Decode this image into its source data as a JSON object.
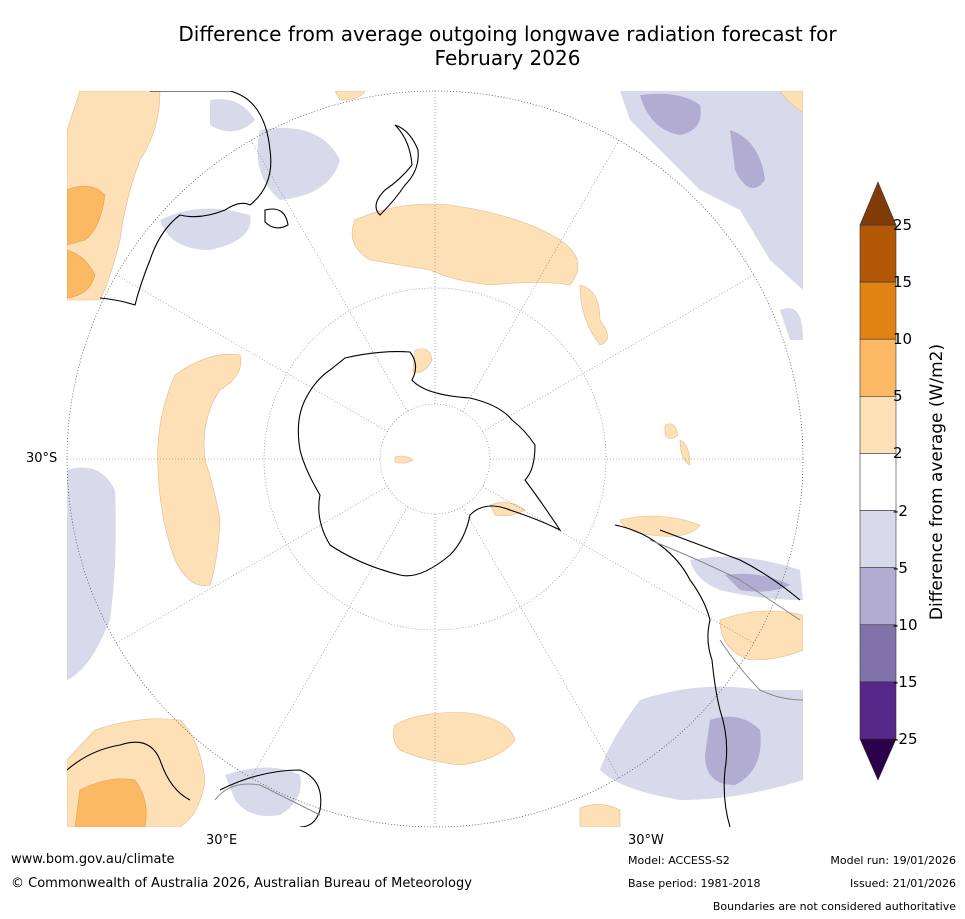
{
  "title_line1": "Difference from average outgoing longwave radiation forecast for",
  "title_line2": "February 2026",
  "axis_labels": {
    "lat_30s": "30°S",
    "lon_30e": "30°E",
    "lon_30w": "30°W"
  },
  "colorbar": {
    "title": "Difference from average (W/m2)",
    "ticks": [
      "25",
      "15",
      "10",
      "5",
      "2",
      "-2",
      "-5",
      "-10",
      "-15",
      "-25"
    ],
    "bands": [
      {
        "label": "over 25",
        "color": "#7f3b08"
      },
      {
        "label": "15 to 25",
        "color": "#b35806"
      },
      {
        "label": "10 to 15",
        "color": "#e08214"
      },
      {
        "label": "5 to 10",
        "color": "#fdb863"
      },
      {
        "label": "2 to 5",
        "color": "#fee0b6"
      },
      {
        "label": "-2 to 2",
        "color": "#ffffff"
      },
      {
        "label": "-5 to -2",
        "color": "#d8daeb"
      },
      {
        "label": "-10 to -5",
        "color": "#b2abd2"
      },
      {
        "label": "-15 to -10",
        "color": "#8073ac"
      },
      {
        "label": "-25 to -15",
        "color": "#542788"
      },
      {
        "label": "under -25",
        "color": "#2d004b"
      }
    ]
  },
  "footer": {
    "website": "www.bom.gov.au/climate",
    "copyright": "© Commonwealth of Australia 2026, Australian Bureau of Meteorology",
    "model": "Model: ACCESS-S2",
    "base_period": "Base period: 1981-2018",
    "model_run": "Model run: 19/01/2026",
    "issued": "Issued: 21/01/2026",
    "disclaimer": "Boundaries are not considered authoritative"
  }
}
